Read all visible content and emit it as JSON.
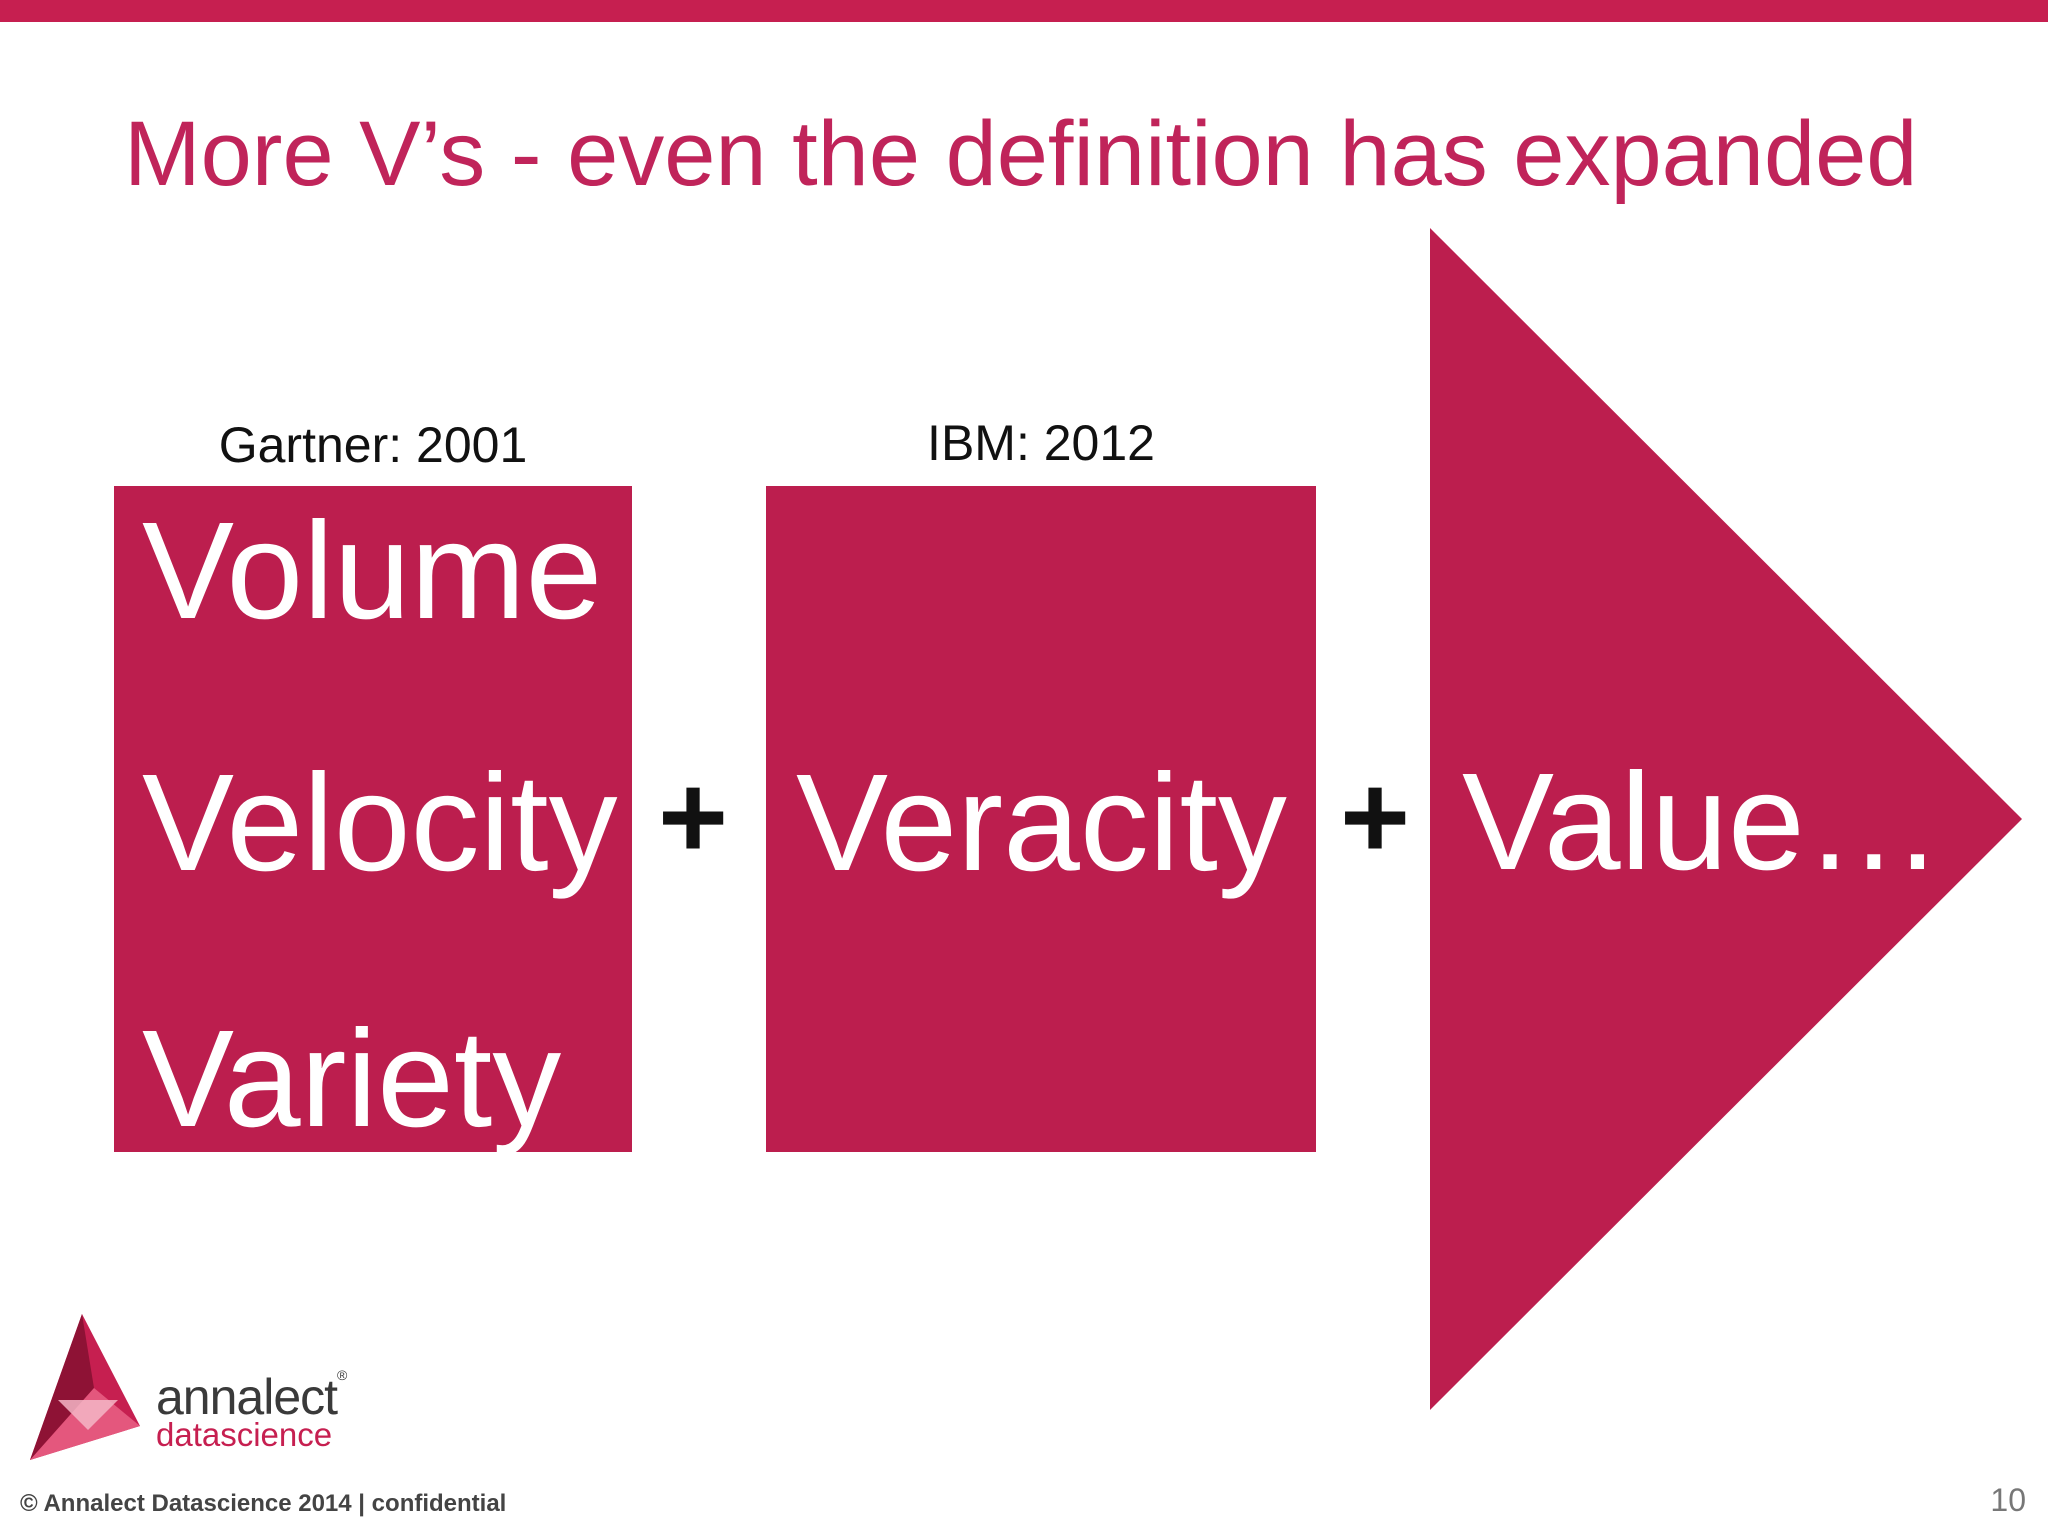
{
  "slide": {
    "title": "More V’s - even the definition has expanded",
    "page_number": "10"
  },
  "colors": {
    "accent": "#BC1E4E",
    "title": "#C0245A",
    "top_bar": "#C61F50"
  },
  "columns": [
    {
      "label": "Gartner: 2001",
      "items": [
        "Volume",
        "Velocity",
        "Variety"
      ]
    },
    {
      "label": "IBM: 2012",
      "items": [
        "Veracity"
      ]
    }
  ],
  "operators": [
    "+",
    "+"
  ],
  "arrow": {
    "text": "Value…"
  },
  "logo": {
    "name": "annalect",
    "registered": "®",
    "subtitle": "datascience"
  },
  "footer": {
    "copyright": "© Annalect Datascience 2014 | confidential"
  }
}
